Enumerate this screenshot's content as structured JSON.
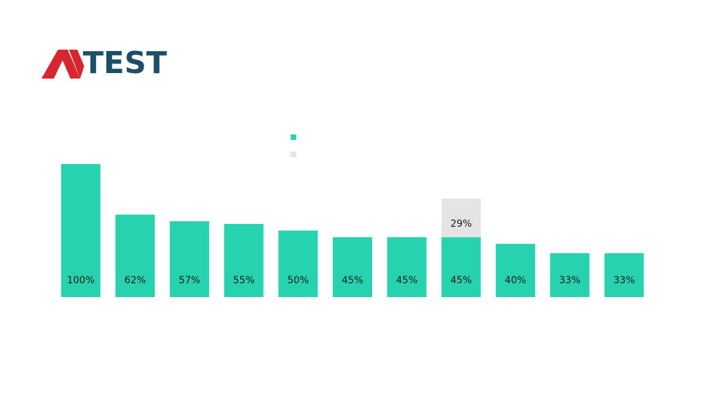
{
  "logo": {
    "text": "TEST"
  },
  "chart_data": {
    "type": "stacked-bar",
    "categories": [
      null,
      null,
      null,
      null,
      null,
      null,
      null,
      null,
      null,
      null,
      null
    ],
    "series": [
      {
        "color": "#26d3ae",
        "values": [
          100,
          62,
          57,
          55,
          50,
          45,
          45,
          45,
          40,
          33,
          33
        ],
        "value_labels": [
          "100%",
          "62%",
          "57%",
          "55%",
          "50%",
          "45%",
          "45%",
          "45%",
          "40%",
          "33%",
          "33%"
        ]
      },
      {
        "color": "#e4e4e4",
        "values": [
          null,
          null,
          null,
          null,
          null,
          null,
          null,
          29,
          null,
          null,
          null
        ],
        "value_labels": [
          null,
          null,
          null,
          null,
          null,
          null,
          null,
          "29%",
          null,
          null,
          null
        ]
      }
    ],
    "ylim": [
      0,
      100
    ]
  }
}
